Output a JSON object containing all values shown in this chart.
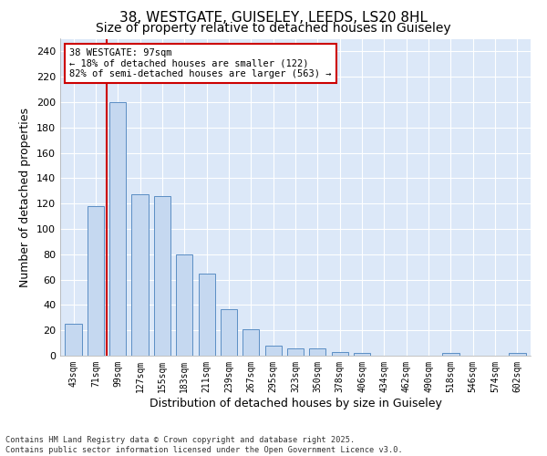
{
  "title_line1": "38, WESTGATE, GUISELEY, LEEDS, LS20 8HL",
  "title_line2": "Size of property relative to detached houses in Guiseley",
  "xlabel": "Distribution of detached houses by size in Guiseley",
  "ylabel": "Number of detached properties",
  "categories": [
    "43sqm",
    "71sqm",
    "99sqm",
    "127sqm",
    "155sqm",
    "183sqm",
    "211sqm",
    "239sqm",
    "267sqm",
    "295sqm",
    "323sqm",
    "350sqm",
    "378sqm",
    "406sqm",
    "434sqm",
    "462sqm",
    "490sqm",
    "518sqm",
    "546sqm",
    "574sqm",
    "602sqm"
  ],
  "values": [
    25,
    118,
    200,
    127,
    126,
    80,
    65,
    37,
    21,
    8,
    6,
    6,
    3,
    2,
    0,
    0,
    0,
    2,
    0,
    0,
    2
  ],
  "bar_color": "#c5d8f0",
  "bar_edge_color": "#5b8ec4",
  "background_color": "#ffffff",
  "plot_bg_color": "#dce8f8",
  "grid_color": "#ffffff",
  "vline_color": "#cc0000",
  "annotation_text": "38 WESTGATE: 97sqm\n← 18% of detached houses are smaller (122)\n82% of semi-detached houses are larger (563) →",
  "annotation_box_color": "#ffffff",
  "annotation_box_edge_color": "#cc0000",
  "ylim": [
    0,
    250
  ],
  "yticks": [
    0,
    20,
    40,
    60,
    80,
    100,
    120,
    140,
    160,
    180,
    200,
    220,
    240
  ],
  "footer": "Contains HM Land Registry data © Crown copyright and database right 2025.\nContains public sector information licensed under the Open Government Licence v3.0.",
  "title_fontsize": 11,
  "subtitle_fontsize": 10,
  "tick_fontsize": 7,
  "label_fontsize": 9,
  "annot_fontsize": 7.5
}
